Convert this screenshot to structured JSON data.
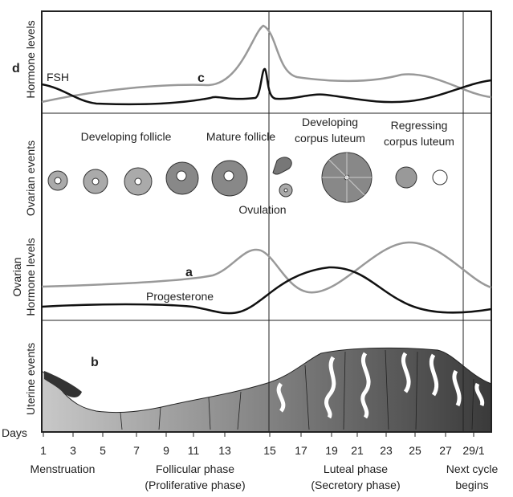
{
  "panel_labels": {
    "hormone_levels": "Hormone levels",
    "ovarian_events": "Ovarian events",
    "ovarian_hormone": [
      "Ovarian",
      "Hormone levels"
    ],
    "uterine_events": "Uterine events"
  },
  "markers": {
    "a": "a",
    "b": "b",
    "c": "c",
    "d": "d"
  },
  "curve_labels": {
    "fsh": "FSH",
    "progesterone": "Progesterone"
  },
  "ovarian_events": {
    "developing_follicle": "Developing follicle",
    "mature_follicle": "Mature follicle",
    "developing_corpus_luteum": [
      "Developing",
      "corpus luteum"
    ],
    "regressing_corpus_luteum": [
      "Regressing",
      "corpus luteum"
    ],
    "ovulation": "Ovulation"
  },
  "days": {
    "label": "Days",
    "ticks": [
      "1",
      "3",
      "5",
      "7",
      "9",
      "11",
      "13",
      "15",
      "17",
      "19",
      "21",
      "23",
      "25",
      "27",
      "29/1"
    ]
  },
  "phases": [
    [
      "Menstruation"
    ],
    [
      "Follicular phase",
      "(Proliferative phase)"
    ],
    [
      "Luteal phase",
      "(Secretory phase)"
    ],
    [
      "Next cycle",
      "begins"
    ]
  ]
}
